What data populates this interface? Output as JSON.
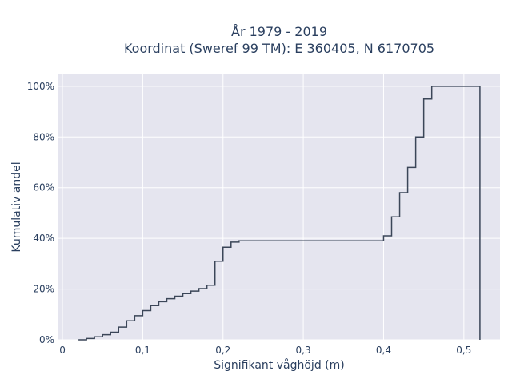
{
  "chart_data": {
    "type": "line",
    "line_shape": "step",
    "title_lines": [
      "År 1979 - 2019",
      "Koordinat (Sweref 99 TM): E 360405, N 6170705"
    ],
    "xlabel": "Signifikant våghöjd (m)",
    "ylabel": "Kumulativ andel",
    "xlim": [
      -0.005,
      0.545
    ],
    "ylim": [
      0,
      1.05
    ],
    "x_ticks": [
      {
        "value": 0,
        "label": "0"
      },
      {
        "value": 0.1,
        "label": "0,1"
      },
      {
        "value": 0.2,
        "label": "0,2"
      },
      {
        "value": 0.3,
        "label": "0,3"
      },
      {
        "value": 0.4,
        "label": "0,4"
      },
      {
        "value": 0.5,
        "label": "0,5"
      }
    ],
    "y_ticks": [
      {
        "value": 0,
        "label": "0%"
      },
      {
        "value": 0.2,
        "label": "20%"
      },
      {
        "value": 0.4,
        "label": "40%"
      },
      {
        "value": 0.6,
        "label": "60%"
      },
      {
        "value": 0.8,
        "label": "80%"
      },
      {
        "value": 1.0,
        "label": "100%"
      }
    ],
    "grid": true,
    "colors": {
      "plot_bg": "#e5e5ef",
      "grid": "#ffffff",
      "line": "#3b4658",
      "text": "#2a3f5f"
    },
    "series": [
      {
        "x": [
          0.02,
          0.03,
          0.04,
          0.05,
          0.06,
          0.07,
          0.08,
          0.09,
          0.1,
          0.11,
          0.12,
          0.13,
          0.14,
          0.15,
          0.16,
          0.17,
          0.18,
          0.19,
          0.2,
          0.21,
          0.22,
          0.4,
          0.41,
          0.42,
          0.43,
          0.44,
          0.45,
          0.46,
          0.52,
          0.52
        ],
        "y": [
          0.0,
          0.005,
          0.012,
          0.02,
          0.03,
          0.05,
          0.075,
          0.095,
          0.115,
          0.135,
          0.15,
          0.162,
          0.172,
          0.182,
          0.192,
          0.202,
          0.215,
          0.31,
          0.365,
          0.385,
          0.39,
          0.41,
          0.485,
          0.58,
          0.68,
          0.8,
          0.95,
          1.0,
          1.0,
          0.0
        ]
      }
    ]
  }
}
